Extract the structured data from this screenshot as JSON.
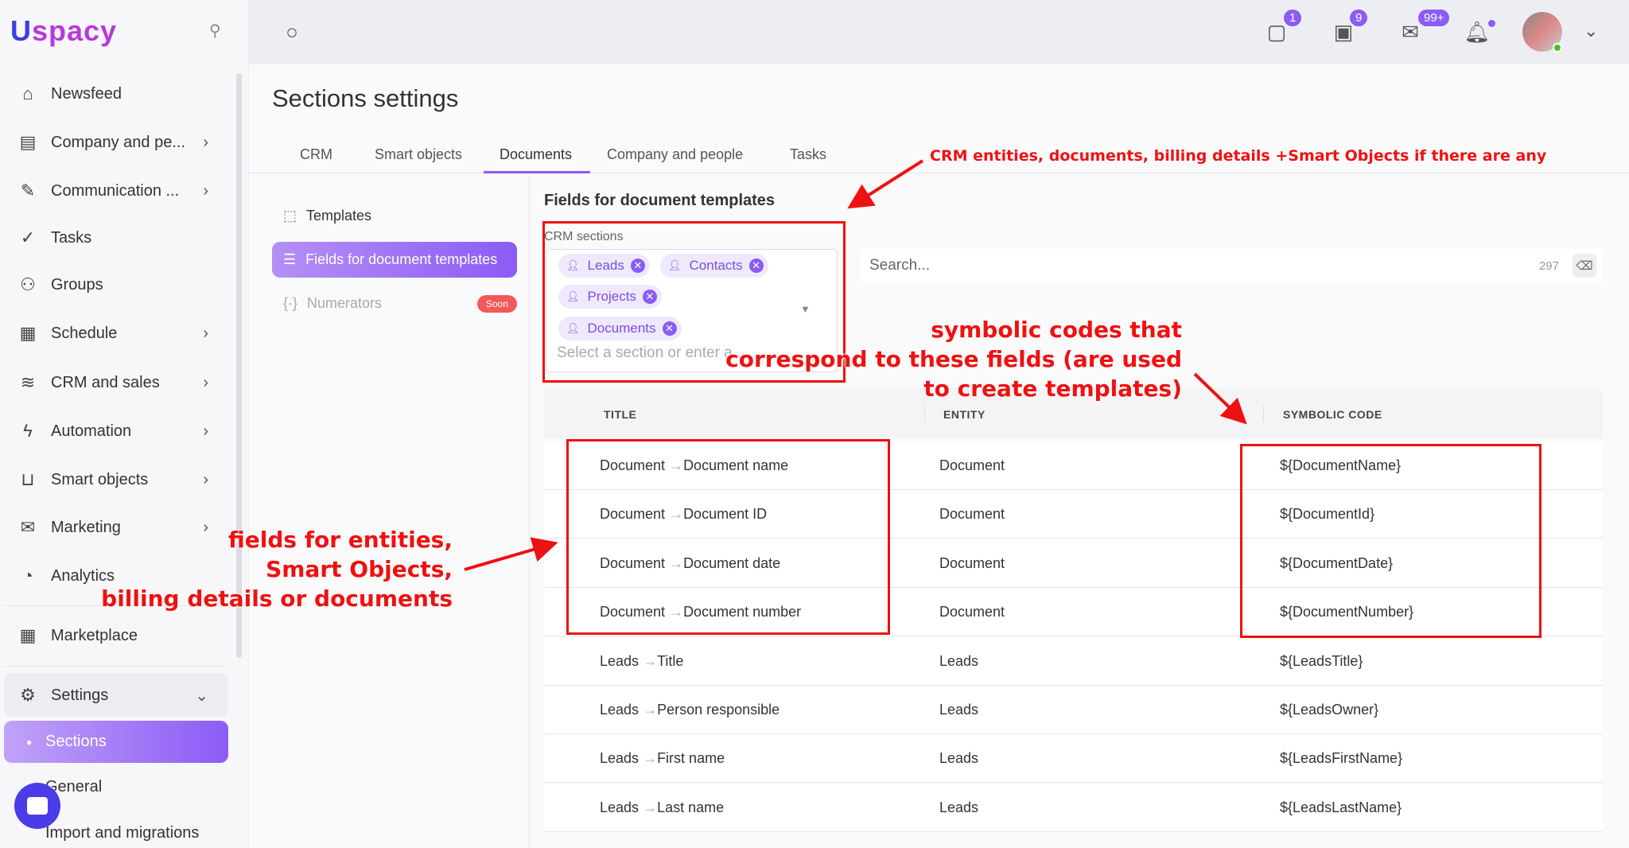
{
  "logo": "Uspacy",
  "sidebar": {
    "items": [
      {
        "label": "Newsfeed",
        "icon": "home-icon",
        "chev": false
      },
      {
        "label": "Company and pe...",
        "icon": "building-icon",
        "chev": true
      },
      {
        "label": "Communication ...",
        "icon": "communication-icon",
        "chev": true
      },
      {
        "label": "Tasks",
        "icon": "check-circle-icon",
        "chev": false
      },
      {
        "label": "Groups",
        "icon": "users-icon",
        "chev": false
      },
      {
        "label": "Schedule",
        "icon": "calendar-icon",
        "chev": true
      },
      {
        "label": "CRM and sales",
        "icon": "funnel-icon",
        "chev": true
      },
      {
        "label": "Automation",
        "icon": "bolt-icon",
        "chev": true
      },
      {
        "label": "Smart objects",
        "icon": "smart-object-icon",
        "chev": true
      },
      {
        "label": "Marketing",
        "icon": "marketing-icon",
        "chev": true
      },
      {
        "label": "Analytics",
        "icon": "chart-icon",
        "chev": false
      }
    ],
    "marketplace": "Marketplace",
    "settings": "Settings",
    "sub": [
      "Sections",
      "General",
      "Import and migrations"
    ]
  },
  "topbar": {
    "badges": {
      "chat": "1",
      "chats": "9",
      "mail": "99+"
    }
  },
  "page": {
    "title": "Sections settings",
    "tabs": [
      "CRM",
      "Smart objects",
      "Documents",
      "Company and people",
      "Tasks"
    ],
    "active_tab": "Documents",
    "subnav": {
      "templates": "Templates",
      "fields": "Fields for document templates",
      "numerators": "Numerators",
      "soon": "Soon"
    },
    "heading": "Fields for document templates",
    "crm_label": "CRM sections",
    "chips": [
      "Leads",
      "Contacts",
      "Projects",
      "Documents"
    ],
    "placeholder": "Select a section or enter a...",
    "search_placeholder": "Search...",
    "count": "297"
  },
  "table": {
    "headers": [
      "TITLE",
      "ENTITY",
      "SYMBOLIC CODE"
    ],
    "rows": [
      {
        "a": "Document",
        "b": "Document name",
        "entity": "Document",
        "code": "${DocumentName}"
      },
      {
        "a": "Document",
        "b": "Document ID",
        "entity": "Document",
        "code": "${DocumentId}"
      },
      {
        "a": "Document",
        "b": "Document date",
        "entity": "Document",
        "code": "${DocumentDate}"
      },
      {
        "a": "Document",
        "b": "Document number",
        "entity": "Document",
        "code": "${DocumentNumber}"
      },
      {
        "a": "Leads",
        "b": "Title",
        "entity": "Leads",
        "code": "${LeadsTitle}"
      },
      {
        "a": "Leads",
        "b": "Person responsible",
        "entity": "Leads",
        "code": "${LeadsOwner}"
      },
      {
        "a": "Leads",
        "b": "First name",
        "entity": "Leads",
        "code": "${LeadsFirstName}"
      },
      {
        "a": "Leads",
        "b": "Last name",
        "entity": "Leads",
        "code": "${LeadsLastName}"
      }
    ]
  },
  "annotations": {
    "top": "CRM entities, documents, billing details +Smart Objects if there are any",
    "codes": [
      "symbolic codes that",
      "correspond to these fields (are used",
      "to create templates)"
    ],
    "fields": [
      "fields for entities,",
      "Smart Objects,",
      "billing details or documents"
    ]
  },
  "colors": {
    "accent": "#8b5cf6",
    "annotation": "#ee1111",
    "soon": "#f25a5a"
  }
}
